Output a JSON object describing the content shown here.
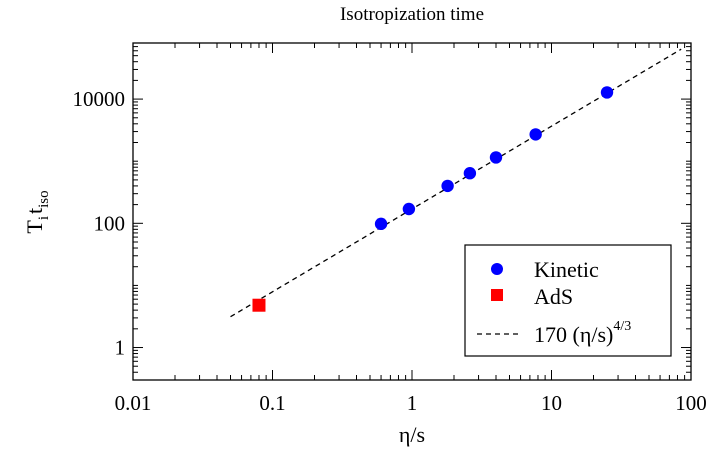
{
  "chart_data": {
    "type": "scatter",
    "title": "Isotropization time",
    "xlabel": "η/s",
    "ylabel": {
      "main": "T",
      "sub_i": "i",
      "t": "t",
      "sub_iso": "iso"
    },
    "xscale": "log",
    "yscale": "log",
    "xlim": [
      0.01,
      100
    ],
    "ylim": [
      0.3,
      80000
    ],
    "x_ticks": [
      {
        "value": 0.01,
        "label": "0.01"
      },
      {
        "value": 0.1,
        "label": "0.1"
      },
      {
        "value": 1,
        "label": "1"
      },
      {
        "value": 10,
        "label": "10"
      },
      {
        "value": 100,
        "label": "100"
      }
    ],
    "y_ticks": [
      {
        "value": 1,
        "label": "1"
      },
      {
        "value": 100,
        "label": "100"
      },
      {
        "value": 10000,
        "label": "10000"
      }
    ],
    "series": [
      {
        "name": "Kinetic",
        "marker": "circle",
        "color": "#0000ff",
        "x": [
          0.6,
          0.95,
          1.8,
          2.6,
          4.0,
          7.7,
          25.0
        ],
        "y": [
          98,
          170,
          400,
          640,
          1150,
          2700,
          12800
        ]
      },
      {
        "name": "AdS",
        "marker": "square",
        "color": "#ff0000",
        "x": [
          0.08
        ],
        "y": [
          4.8
        ]
      },
      {
        "name": "170 (η/s)",
        "name_superscript": "4/3",
        "marker": "dashed-line",
        "color": "#000000",
        "coefficient": 170,
        "exponent": 1.3333,
        "x_range": [
          0.05,
          85
        ]
      }
    ],
    "legend": {
      "position": "bottom-right"
    },
    "grid": false
  }
}
